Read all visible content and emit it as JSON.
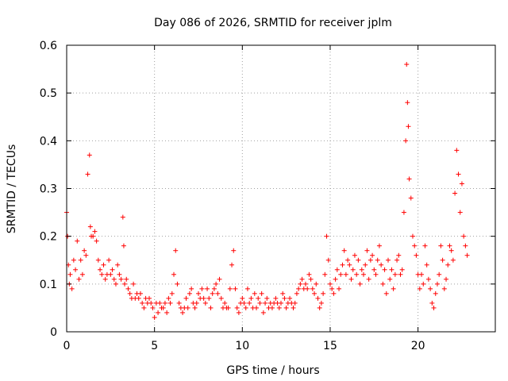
{
  "chart_data": {
    "type": "scatter",
    "title": "Day 086 of 2026, SRMTID for receiver jplm",
    "xlabel": "GPS time / hours",
    "ylabel": "SRMTID / TECUs",
    "xlim": [
      0,
      24.4
    ],
    "ylim": [
      0,
      0.6
    ],
    "xticks": [
      0,
      5,
      10,
      15,
      20
    ],
    "xtick_labels": [
      "0",
      "5",
      "10",
      "15",
      "20"
    ],
    "yticks": [
      0,
      0.1,
      0.2,
      0.3,
      0.4,
      0.5,
      0.6
    ],
    "ytick_labels": [
      "0",
      "0.1",
      "0.2",
      "0.3",
      "0.4",
      "0.5",
      "0.6"
    ],
    "grid": true,
    "marker": "+",
    "color": "#ff0000",
    "series": [
      {
        "name": "SRMTID",
        "x": [
          0.0,
          0.05,
          0.1,
          0.15,
          0.2,
          0.3,
          0.4,
          0.5,
          0.6,
          0.7,
          0.8,
          0.9,
          1.0,
          1.1,
          1.2,
          1.3,
          1.35,
          1.4,
          1.5,
          1.6,
          1.7,
          1.8,
          1.9,
          2.0,
          2.1,
          2.2,
          2.3,
          2.4,
          2.5,
          2.6,
          2.7,
          2.8,
          2.9,
          3.0,
          3.1,
          3.2,
          3.25,
          3.3,
          3.4,
          3.5,
          3.6,
          3.7,
          3.8,
          3.9,
          4.0,
          4.1,
          4.2,
          4.3,
          4.4,
          4.5,
          4.6,
          4.7,
          4.8,
          4.9,
          5.0,
          5.1,
          5.2,
          5.3,
          5.4,
          5.5,
          5.6,
          5.7,
          5.8,
          5.9,
          6.0,
          6.1,
          6.2,
          6.3,
          6.4,
          6.5,
          6.6,
          6.7,
          6.8,
          6.9,
          7.0,
          7.1,
          7.2,
          7.3,
          7.4,
          7.5,
          7.6,
          7.7,
          7.8,
          7.9,
          8.0,
          8.1,
          8.2,
          8.3,
          8.4,
          8.5,
          8.6,
          8.7,
          8.8,
          8.9,
          9.0,
          9.1,
          9.2,
          9.3,
          9.4,
          9.5,
          9.6,
          9.7,
          9.8,
          9.9,
          10.0,
          10.1,
          10.2,
          10.3,
          10.4,
          10.5,
          10.6,
          10.7,
          10.8,
          10.9,
          11.0,
          11.1,
          11.2,
          11.3,
          11.4,
          11.5,
          11.6,
          11.7,
          11.8,
          11.9,
          12.0,
          12.1,
          12.2,
          12.3,
          12.4,
          12.5,
          12.6,
          12.7,
          12.8,
          12.9,
          13.0,
          13.1,
          13.2,
          13.3,
          13.4,
          13.5,
          13.6,
          13.7,
          13.8,
          13.9,
          14.0,
          14.1,
          14.2,
          14.3,
          14.4,
          14.5,
          14.6,
          14.7,
          14.8,
          14.9,
          15.0,
          15.1,
          15.2,
          15.3,
          15.4,
          15.5,
          15.6,
          15.7,
          15.8,
          15.9,
          16.0,
          16.1,
          16.2,
          16.3,
          16.4,
          16.5,
          16.6,
          16.7,
          16.8,
          16.9,
          17.0,
          17.1,
          17.2,
          17.3,
          17.4,
          17.5,
          17.6,
          17.7,
          17.8,
          17.9,
          18.0,
          18.1,
          18.2,
          18.3,
          18.4,
          18.5,
          18.6,
          18.7,
          18.8,
          18.9,
          19.0,
          19.1,
          19.2,
          19.3,
          19.35,
          19.4,
          19.45,
          19.5,
          19.6,
          19.7,
          19.8,
          19.9,
          20.0,
          20.1,
          20.2,
          20.3,
          20.4,
          20.5,
          20.6,
          20.7,
          20.8,
          20.9,
          21.0,
          21.1,
          21.2,
          21.3,
          21.4,
          21.5,
          21.6,
          21.7,
          21.8,
          21.9,
          22.0,
          22.1,
          22.2,
          22.3,
          22.4,
          22.5,
          22.6,
          22.7,
          22.8
        ],
        "y": [
          0.25,
          0.2,
          0.14,
          0.1,
          0.12,
          0.09,
          0.15,
          0.13,
          0.19,
          0.11,
          0.15,
          0.12,
          0.17,
          0.16,
          0.33,
          0.37,
          0.22,
          0.2,
          0.2,
          0.21,
          0.19,
          0.15,
          0.13,
          0.12,
          0.14,
          0.11,
          0.12,
          0.15,
          0.12,
          0.13,
          0.11,
          0.1,
          0.14,
          0.12,
          0.11,
          0.24,
          0.18,
          0.1,
          0.11,
          0.09,
          0.08,
          0.07,
          0.1,
          0.07,
          0.08,
          0.07,
          0.08,
          0.06,
          0.05,
          0.07,
          0.06,
          0.07,
          0.06,
          0.05,
          0.03,
          0.06,
          0.04,
          0.06,
          0.05,
          0.05,
          0.06,
          0.04,
          0.07,
          0.06,
          0.08,
          0.12,
          0.17,
          0.1,
          0.06,
          0.05,
          0.04,
          0.05,
          0.07,
          0.05,
          0.08,
          0.09,
          0.06,
          0.05,
          0.06,
          0.08,
          0.07,
          0.09,
          0.07,
          0.06,
          0.09,
          0.07,
          0.05,
          0.08,
          0.09,
          0.1,
          0.08,
          0.11,
          0.07,
          0.05,
          0.06,
          0.05,
          0.05,
          0.09,
          0.14,
          0.17,
          0.09,
          0.05,
          0.04,
          0.06,
          0.07,
          0.06,
          0.05,
          0.09,
          0.06,
          0.07,
          0.05,
          0.08,
          0.05,
          0.07,
          0.06,
          0.08,
          0.04,
          0.06,
          0.07,
          0.05,
          0.06,
          0.05,
          0.06,
          0.07,
          0.06,
          0.05,
          0.06,
          0.08,
          0.07,
          0.05,
          0.06,
          0.07,
          0.06,
          0.05,
          0.06,
          0.08,
          0.09,
          0.1,
          0.11,
          0.09,
          0.1,
          0.09,
          0.12,
          0.11,
          0.09,
          0.08,
          0.1,
          0.07,
          0.05,
          0.06,
          0.08,
          0.12,
          0.2,
          0.15,
          0.1,
          0.09,
          0.08,
          0.11,
          0.13,
          0.09,
          0.12,
          0.14,
          0.17,
          0.12,
          0.15,
          0.14,
          0.11,
          0.13,
          0.16,
          0.12,
          0.15,
          0.1,
          0.13,
          0.12,
          0.14,
          0.17,
          0.11,
          0.15,
          0.16,
          0.13,
          0.12,
          0.15,
          0.18,
          0.14,
          0.1,
          0.13,
          0.08,
          0.15,
          0.11,
          0.13,
          0.09,
          0.12,
          0.15,
          0.16,
          0.12,
          0.13,
          0.25,
          0.4,
          0.56,
          0.48,
          0.43,
          0.32,
          0.28,
          0.2,
          0.18,
          0.16,
          0.12,
          0.09,
          0.12,
          0.1,
          0.18,
          0.14,
          0.11,
          0.09,
          0.06,
          0.05,
          0.08,
          0.1,
          0.12,
          0.18,
          0.15,
          0.09,
          0.11,
          0.14,
          0.18,
          0.17,
          0.15,
          0.29,
          0.38,
          0.33,
          0.25,
          0.31,
          0.2,
          0.18,
          0.16
        ]
      }
    ]
  }
}
